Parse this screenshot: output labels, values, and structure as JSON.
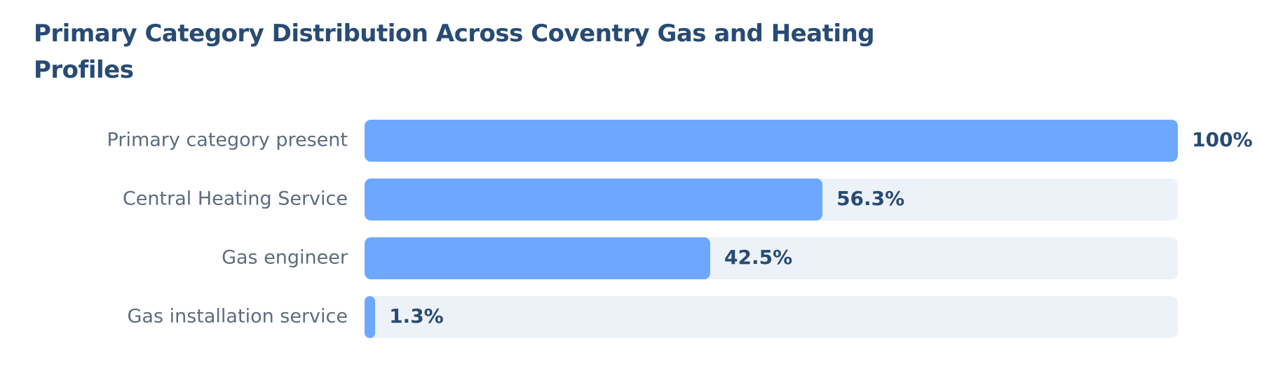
{
  "chart_data": {
    "type": "bar",
    "orientation": "horizontal",
    "title": "Primary Category Distribution Across Coventry Gas and Heating Profiles",
    "categories": [
      "Primary category present",
      "Central Heating Service",
      "Gas engineer",
      "Gas installation service"
    ],
    "values": [
      100,
      56.3,
      42.5,
      1.3
    ],
    "value_labels": [
      "100%",
      "56.3%",
      "42.5%",
      "1.3%"
    ],
    "color": "#6ea8fe",
    "track_color": "#edf2f9",
    "xlim": [
      0,
      100
    ]
  }
}
